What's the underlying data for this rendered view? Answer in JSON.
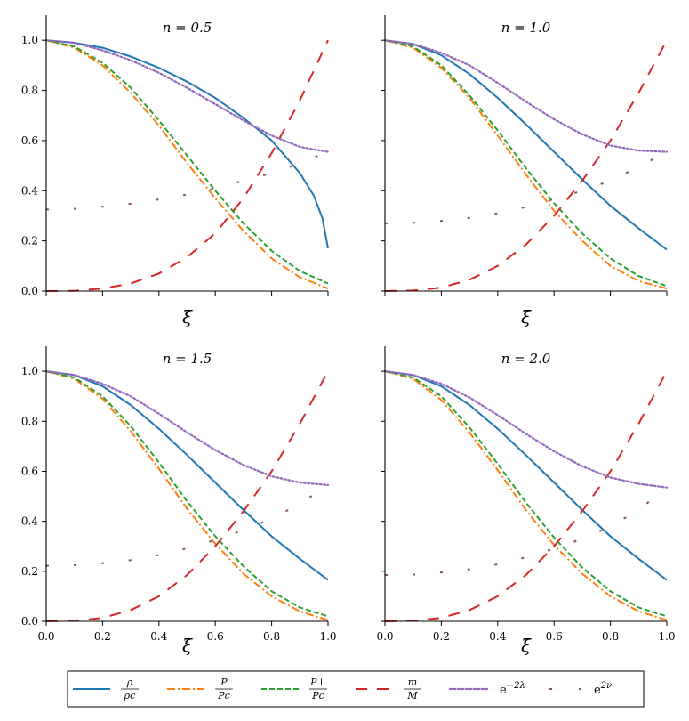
{
  "chart_data": {
    "type": "line",
    "shared": {
      "xlabel": "ξ̄",
      "xlim": [
        0.0,
        1.0
      ],
      "ylim": [
        0.0,
        1.1
      ],
      "xticks": [
        0.0,
        0.2,
        0.4,
        0.6,
        0.8,
        1.0
      ],
      "yticks": [
        0.0,
        0.2,
        0.4,
        0.6,
        0.8,
        1.0
      ],
      "grid": false,
      "legend_position": "bottom-center"
    },
    "legend": [
      {
        "key": "rho",
        "label": "ρ/ρc",
        "num": "ρ",
        "den": "ρc",
        "color": "#1f77b4",
        "dash": "solid"
      },
      {
        "key": "P",
        "label": "P/Pc",
        "num": "P",
        "den": "Pc",
        "color": "#ff7f0e",
        "dash": "dashdot"
      },
      {
        "key": "Pperp",
        "label": "P⊥/Pc",
        "num": "P⊥",
        "den": "Pc",
        "color": "#2ca02c",
        "dash": "dashed"
      },
      {
        "key": "m",
        "label": "m/M",
        "num": "m",
        "den": "M",
        "color": "#d62728",
        "dash": "longdash"
      },
      {
        "key": "lam",
        "label": "e−2λ",
        "base": "e",
        "sup": "−2λ",
        "color": "#9467bd",
        "dash": "dotted"
      },
      {
        "key": "nu",
        "label": "e2ν",
        "base": "e",
        "sup": "2ν",
        "color": "#8c564b",
        "dash": "sparse"
      }
    ],
    "panels": [
      {
        "title": "n = 0.5",
        "series": [
          {
            "key": "rho",
            "x": [
              0,
              0.1,
              0.2,
              0.3,
              0.4,
              0.5,
              0.6,
              0.7,
              0.8,
              0.9,
              0.95,
              0.98,
              1.0
            ],
            "y": [
              1.0,
              0.99,
              0.97,
              0.935,
              0.89,
              0.835,
              0.77,
              0.69,
              0.6,
              0.47,
              0.38,
              0.29,
              0.17
            ]
          },
          {
            "key": "P",
            "x": [
              0,
              0.1,
              0.2,
              0.3,
              0.4,
              0.5,
              0.6,
              0.7,
              0.8,
              0.9,
              1.0
            ],
            "y": [
              1.0,
              0.97,
              0.9,
              0.79,
              0.66,
              0.51,
              0.37,
              0.24,
              0.13,
              0.055,
              0.01
            ]
          },
          {
            "key": "Pperp",
            "x": [
              0,
              0.1,
              0.2,
              0.3,
              0.4,
              0.5,
              0.6,
              0.7,
              0.8,
              0.9,
              1.0
            ],
            "y": [
              1.0,
              0.975,
              0.91,
              0.81,
              0.68,
              0.54,
              0.4,
              0.27,
              0.16,
              0.08,
              0.03
            ]
          },
          {
            "key": "m",
            "x": [
              0,
              0.1,
              0.2,
              0.3,
              0.4,
              0.5,
              0.6,
              0.7,
              0.8,
              0.9,
              1.0
            ],
            "y": [
              0,
              0.001,
              0.01,
              0.03,
              0.07,
              0.135,
              0.23,
              0.37,
              0.55,
              0.76,
              1.0
            ]
          },
          {
            "key": "lam",
            "x": [
              0,
              0.1,
              0.2,
              0.3,
              0.4,
              0.5,
              0.6,
              0.7,
              0.8,
              0.9,
              1.0
            ],
            "y": [
              1.0,
              0.99,
              0.96,
              0.92,
              0.87,
              0.81,
              0.745,
              0.68,
              0.62,
              0.575,
              0.555
            ]
          },
          {
            "key": "nu",
            "x": [
              0,
              0.1,
              0.2,
              0.3,
              0.4,
              0.5,
              0.6,
              0.7,
              0.8,
              0.9,
              1.0
            ],
            "y": [
              0.325,
              0.328,
              0.336,
              0.348,
              0.365,
              0.385,
              0.41,
              0.44,
              0.47,
              0.51,
              0.555
            ]
          }
        ]
      },
      {
        "title": "n = 1.0",
        "series": [
          {
            "key": "rho",
            "x": [
              0,
              0.1,
              0.2,
              0.3,
              0.4,
              0.5,
              0.6,
              0.7,
              0.8,
              0.9,
              1.0
            ],
            "y": [
              1.0,
              0.985,
              0.94,
              0.865,
              0.77,
              0.665,
              0.555,
              0.445,
              0.34,
              0.25,
              0.165
            ]
          },
          {
            "key": "P",
            "x": [
              0,
              0.1,
              0.2,
              0.3,
              0.4,
              0.5,
              0.6,
              0.7,
              0.8,
              0.9,
              1.0
            ],
            "y": [
              1.0,
              0.97,
              0.89,
              0.77,
              0.62,
              0.465,
              0.32,
              0.2,
              0.1,
              0.04,
              0.01
            ]
          },
          {
            "key": "Pperp",
            "x": [
              0,
              0.1,
              0.2,
              0.3,
              0.4,
              0.5,
              0.6,
              0.7,
              0.8,
              0.9,
              1.0
            ],
            "y": [
              1.0,
              0.975,
              0.9,
              0.78,
              0.64,
              0.49,
              0.35,
              0.23,
              0.13,
              0.06,
              0.02
            ]
          },
          {
            "key": "m",
            "x": [
              0,
              0.1,
              0.2,
              0.3,
              0.4,
              0.5,
              0.6,
              0.7,
              0.8,
              0.9,
              1.0
            ],
            "y": [
              0,
              0.002,
              0.014,
              0.045,
              0.1,
              0.185,
              0.3,
              0.44,
              0.6,
              0.79,
              1.0
            ]
          },
          {
            "key": "lam",
            "x": [
              0,
              0.1,
              0.2,
              0.3,
              0.4,
              0.5,
              0.6,
              0.7,
              0.8,
              0.9,
              1.0
            ],
            "y": [
              1.0,
              0.985,
              0.95,
              0.9,
              0.83,
              0.755,
              0.685,
              0.625,
              0.58,
              0.56,
              0.555
            ]
          },
          {
            "key": "nu",
            "x": [
              0,
              0.1,
              0.2,
              0.3,
              0.4,
              0.5,
              0.6,
              0.7,
              0.8,
              0.9,
              1.0
            ],
            "y": [
              0.27,
              0.272,
              0.28,
              0.292,
              0.31,
              0.335,
              0.365,
              0.4,
              0.44,
              0.495,
              0.555
            ]
          }
        ]
      },
      {
        "title": "n = 1.5",
        "series": [
          {
            "key": "rho",
            "x": [
              0,
              0.1,
              0.2,
              0.3,
              0.4,
              0.5,
              0.6,
              0.7,
              0.8,
              0.9,
              1.0
            ],
            "y": [
              1.0,
              0.985,
              0.94,
              0.865,
              0.77,
              0.665,
              0.555,
              0.445,
              0.34,
              0.25,
              0.165
            ]
          },
          {
            "key": "P",
            "x": [
              0,
              0.1,
              0.2,
              0.3,
              0.4,
              0.5,
              0.6,
              0.7,
              0.8,
              0.9,
              1.0
            ],
            "y": [
              1.0,
              0.97,
              0.89,
              0.76,
              0.61,
              0.45,
              0.31,
              0.19,
              0.1,
              0.04,
              0.005
            ]
          },
          {
            "key": "Pperp",
            "x": [
              0,
              0.1,
              0.2,
              0.3,
              0.4,
              0.5,
              0.6,
              0.7,
              0.8,
              0.9,
              1.0
            ],
            "y": [
              1.0,
              0.975,
              0.9,
              0.78,
              0.635,
              0.48,
              0.34,
              0.22,
              0.12,
              0.055,
              0.02
            ]
          },
          {
            "key": "m",
            "x": [
              0,
              0.1,
              0.2,
              0.3,
              0.4,
              0.5,
              0.6,
              0.7,
              0.8,
              0.9,
              1.0
            ],
            "y": [
              0,
              0.002,
              0.014,
              0.045,
              0.1,
              0.185,
              0.3,
              0.44,
              0.6,
              0.79,
              1.0
            ]
          },
          {
            "key": "lam",
            "x": [
              0,
              0.1,
              0.2,
              0.3,
              0.4,
              0.5,
              0.6,
              0.7,
              0.8,
              0.9,
              1.0
            ],
            "y": [
              1.0,
              0.985,
              0.95,
              0.9,
              0.83,
              0.755,
              0.685,
              0.625,
              0.58,
              0.555,
              0.545
            ]
          },
          {
            "key": "nu",
            "x": [
              0,
              0.1,
              0.2,
              0.3,
              0.4,
              0.5,
              0.6,
              0.7,
              0.8,
              0.9,
              1.0
            ],
            "y": [
              0.222,
              0.224,
              0.232,
              0.245,
              0.265,
              0.292,
              0.325,
              0.365,
              0.41,
              0.47,
              0.545
            ]
          }
        ]
      },
      {
        "title": "n = 2.0",
        "series": [
          {
            "key": "rho",
            "x": [
              0,
              0.1,
              0.2,
              0.3,
              0.4,
              0.5,
              0.6,
              0.7,
              0.8,
              0.9,
              1.0
            ],
            "y": [
              1.0,
              0.985,
              0.94,
              0.865,
              0.77,
              0.665,
              0.555,
              0.445,
              0.34,
              0.25,
              0.165
            ]
          },
          {
            "key": "P",
            "x": [
              0,
              0.1,
              0.2,
              0.3,
              0.4,
              0.5,
              0.6,
              0.7,
              0.8,
              0.9,
              1.0
            ],
            "y": [
              1.0,
              0.97,
              0.885,
              0.755,
              0.605,
              0.445,
              0.305,
              0.19,
              0.1,
              0.04,
              0.005
            ]
          },
          {
            "key": "Pperp",
            "x": [
              0,
              0.1,
              0.2,
              0.3,
              0.4,
              0.5,
              0.6,
              0.7,
              0.8,
              0.9,
              1.0
            ],
            "y": [
              1.0,
              0.975,
              0.9,
              0.775,
              0.63,
              0.475,
              0.335,
              0.215,
              0.12,
              0.055,
              0.02
            ]
          },
          {
            "key": "m",
            "x": [
              0,
              0.1,
              0.2,
              0.3,
              0.4,
              0.5,
              0.6,
              0.7,
              0.8,
              0.9,
              1.0
            ],
            "y": [
              0,
              0.002,
              0.014,
              0.045,
              0.1,
              0.185,
              0.3,
              0.44,
              0.6,
              0.79,
              1.0
            ]
          },
          {
            "key": "lam",
            "x": [
              0,
              0.1,
              0.2,
              0.3,
              0.4,
              0.5,
              0.6,
              0.7,
              0.8,
              0.9,
              1.0
            ],
            "y": [
              1.0,
              0.985,
              0.95,
              0.895,
              0.825,
              0.75,
              0.68,
              0.62,
              0.575,
              0.55,
              0.535
            ]
          },
          {
            "key": "nu",
            "x": [
              0,
              0.1,
              0.2,
              0.3,
              0.4,
              0.5,
              0.6,
              0.7,
              0.8,
              0.9,
              1.0
            ],
            "y": [
              0.185,
              0.187,
              0.195,
              0.208,
              0.228,
              0.256,
              0.29,
              0.33,
              0.38,
              0.445,
              0.535
            ]
          }
        ]
      }
    ]
  }
}
